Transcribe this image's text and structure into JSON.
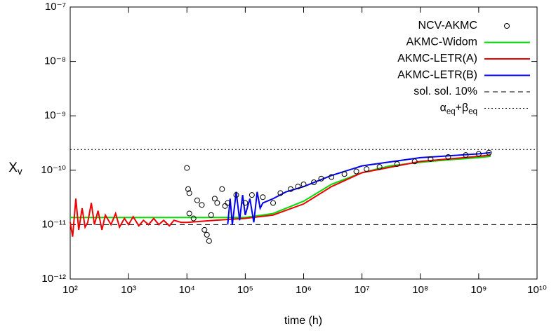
{
  "chart_data": {
    "type": "scatter-line",
    "xlabel": "time (h)",
    "ylabel": "Xv",
    "log_x": true,
    "log_y": true,
    "legend": "upper right",
    "xlim": [
      100,
      10000000000
    ],
    "ylim": [
      1e-12,
      1e-07
    ],
    "xticks": [
      {
        "value": 100,
        "label": "10²"
      },
      {
        "value": 1000,
        "label": "10³"
      },
      {
        "value": 10000,
        "label": "10⁴"
      },
      {
        "value": 100000,
        "label": "10⁵"
      },
      {
        "value": 1000000,
        "label": "10⁶"
      },
      {
        "value": 10000000,
        "label": "10⁷"
      },
      {
        "value": 100000000,
        "label": "10⁸"
      },
      {
        "value": 1000000000,
        "label": "10⁹"
      },
      {
        "value": 10000000000,
        "label": "10¹⁰"
      }
    ],
    "yticks": [
      {
        "value": 1e-12,
        "label": "10⁻¹²"
      },
      {
        "value": 1e-11,
        "label": "10⁻¹¹"
      },
      {
        "value": 1e-10,
        "label": "10⁻¹⁰"
      },
      {
        "value": 1e-09,
        "label": "10⁻⁹"
      },
      {
        "value": 1e-08,
        "label": "10⁻⁸"
      },
      {
        "value": 1e-07,
        "label": "10⁻⁷"
      }
    ],
    "series": [
      {
        "name": "NCV-AKMC",
        "kind": "scatter",
        "color": "#000000",
        "x": [
          10000,
          10500,
          11000,
          11000,
          13000,
          15000,
          18000,
          20000,
          22000,
          24000,
          26000,
          30000,
          33000,
          40000,
          45000,
          50000,
          70000,
          100000,
          130000,
          200000,
          300000,
          400000,
          600000,
          800000,
          1000000,
          1500000,
          2000000,
          3000000,
          5000000,
          8000000,
          12000000,
          20000000,
          40000000,
          80000000,
          150000000,
          300000000,
          600000000,
          1000000000,
          1500000000
        ],
        "y": [
          1.1e-10,
          4.5e-11,
          3.8e-11,
          1.6e-11,
          1.3e-11,
          2.8e-11,
          2.3e-11,
          8e-12,
          6.5e-12,
          5e-12,
          1.5e-11,
          3e-11,
          2.5e-11,
          4.5e-11,
          2.2e-11,
          2.5e-11,
          3.5e-11,
          2.5e-11,
          3.5e-11,
          3.2e-11,
          2.5e-11,
          3.8e-11,
          4.5e-11,
          5e-11,
          5.5e-11,
          6e-11,
          7e-11,
          7.5e-11,
          8.5e-11,
          9.5e-11,
          1.05e-10,
          1.15e-10,
          1.3e-10,
          1.45e-10,
          1.6e-10,
          1.75e-10,
          1.9e-10,
          2e-10,
          2.1e-10
        ]
      },
      {
        "name": "AKMC-Widom",
        "kind": "line",
        "linestyle": "solid",
        "color": "#00dd00",
        "x": [
          100,
          1000,
          10000,
          30000,
          100000,
          300000,
          1000000,
          3000000,
          10000000,
          30000000,
          100000000,
          300000000,
          1000000000,
          1600000000
        ],
        "y": [
          1.35e-11,
          1.35e-11,
          1.35e-11,
          1.35e-11,
          1.35e-11,
          1.6e-11,
          2.7e-11,
          5.5e-11,
          9e-11,
          1.2e-10,
          1.4e-10,
          1.55e-10,
          1.7e-10,
          1.8e-10
        ]
      },
      {
        "name": "AKMC-LETR(A)",
        "kind": "line",
        "linestyle": "solid",
        "color": "#ee0000",
        "x": [
          100,
          110,
          125,
          140,
          160,
          180,
          200,
          230,
          260,
          300,
          350,
          400,
          500,
          600,
          700,
          850,
          1000,
          1200,
          1500,
          1800,
          2200,
          2700,
          3300,
          4000,
          5000,
          6000,
          8000,
          10000,
          30000,
          100000,
          300000,
          1000000,
          3000000,
          10000000,
          100000000,
          1000000000,
          1600000000
        ],
        "y": [
          1.1e-11,
          6e-12,
          3e-11,
          8e-12,
          2e-11,
          9e-12,
          1.1e-11,
          2.5e-11,
          1e-11,
          1.8e-11,
          8e-12,
          1.5e-11,
          1e-11,
          1.6e-11,
          9e-12,
          1.3e-11,
          1e-11,
          1.4e-11,
          9.5e-12,
          1.2e-11,
          1e-11,
          1.3e-11,
          1e-11,
          1.2e-11,
          9.5e-12,
          1.2e-11,
          1.1e-11,
          1.1e-11,
          1.2e-11,
          1.3e-11,
          1.5e-11,
          2.4e-11,
          5e-11,
          9e-11,
          1.45e-10,
          1.8e-10,
          1.9e-10
        ]
      },
      {
        "name": "AKMC-LETR(B)",
        "kind": "line",
        "linestyle": "solid",
        "color": "#0000ee",
        "x": [
          50000,
          55000,
          60000,
          70000,
          80000,
          90000,
          100000,
          120000,
          140000,
          160000,
          180000,
          200000,
          300000,
          500000,
          1000000,
          3000000,
          10000000,
          100000000,
          1000000000,
          1600000000
        ],
        "y": [
          1e-11,
          3e-11,
          1e-11,
          4e-11,
          1.2e-11,
          3.5e-11,
          1.5e-11,
          3e-11,
          1.1e-11,
          4e-11,
          2e-11,
          2.5e-11,
          3e-11,
          4e-11,
          5e-11,
          8e-11,
          1.2e-10,
          1.7e-10,
          2e-10,
          2.1e-10
        ]
      },
      {
        "name": "sol. sol. 10%",
        "kind": "line",
        "linestyle": "dashed",
        "color": "#000000",
        "x": [
          100,
          10000000000
        ],
        "y": [
          1e-11,
          1e-11
        ]
      },
      {
        "name": "αeq+βeq",
        "kind": "line",
        "linestyle": "dotted",
        "color": "#000000",
        "x": [
          100,
          10000000000
        ],
        "y": [
          2.4e-10,
          2.4e-10
        ]
      }
    ]
  }
}
